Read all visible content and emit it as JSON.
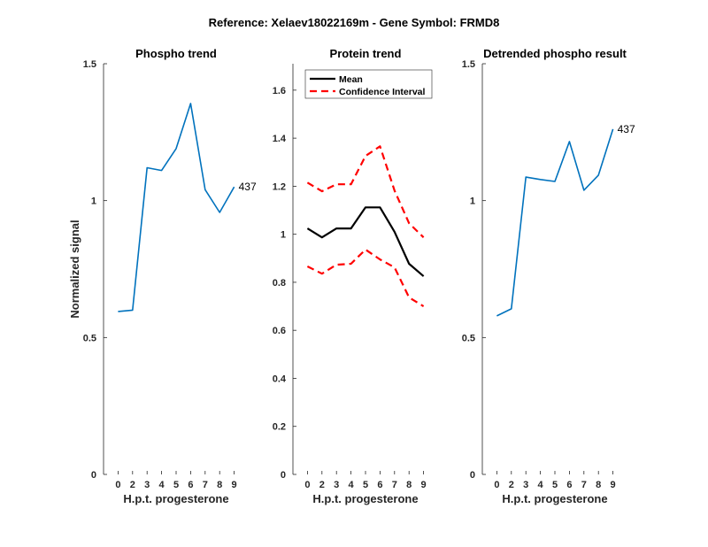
{
  "figure_title": "Reference:  Xelaev18022169m - Gene Symbol:  FRMD8",
  "chart_data": [
    {
      "type": "line",
      "title": "Phospho trend",
      "xlabel": "H.p.t. progesterone",
      "ylabel": "Normalized signal",
      "categories": [
        "0",
        "2",
        "3",
        "4",
        "5",
        "6",
        "7",
        "8",
        "9"
      ],
      "ylim": [
        0,
        1.5
      ],
      "yticks": [
        0,
        0.5,
        1,
        1.5
      ],
      "ytick_labels": [
        "0",
        "0.5",
        "1",
        "1.5"
      ],
      "series": [
        {
          "name": "437",
          "color": "#0072BD",
          "style": "solid",
          "values": [
            0.595,
            0.6,
            1.12,
            1.11,
            1.19,
            1.355,
            1.04,
            0.957,
            1.05
          ]
        }
      ],
      "end_label": "437"
    },
    {
      "type": "line",
      "title": "Protein trend",
      "xlabel": "H.p.t. progesterone",
      "ylabel": "",
      "categories": [
        "0",
        "2",
        "3",
        "4",
        "5",
        "6",
        "7",
        "8",
        "9"
      ],
      "ylim": [
        0,
        1.71
      ],
      "yticks": [
        0,
        0.2,
        0.4,
        0.6,
        0.8,
        1,
        1.2,
        1.4,
        1.6
      ],
      "ytick_labels": [
        "0",
        "0.2",
        "0.4",
        "0.6",
        "0.8",
        "1",
        "1.2",
        "1.4",
        "1.6"
      ],
      "legend": {
        "placement": "top-left",
        "entries": [
          "Mean",
          "Confidence Interval"
        ]
      },
      "series": [
        {
          "name": "Mean",
          "color": "#000000",
          "style": "solid",
          "values": [
            1.024,
            0.987,
            1.024,
            1.024,
            1.112,
            1.112,
            1.01,
            0.877,
            0.825
          ]
        },
        {
          "name": "Confidence Interval (upper)",
          "color": "#FF0000",
          "style": "dashed",
          "values": [
            1.215,
            1.179,
            1.208,
            1.208,
            1.326,
            1.366,
            1.182,
            1.046,
            0.987
          ]
        },
        {
          "name": "Confidence Interval (lower)",
          "color": "#FF0000",
          "style": "dashed",
          "values": [
            0.866,
            0.836,
            0.873,
            0.877,
            0.936,
            0.895,
            0.862,
            0.737,
            0.7
          ]
        }
      ]
    },
    {
      "type": "line",
      "title": "Detrended phospho result",
      "xlabel": "H.p.t. progesterone",
      "ylabel": "",
      "categories": [
        "0",
        "2",
        "3",
        "4",
        "5",
        "6",
        "7",
        "8",
        "9"
      ],
      "ylim": [
        0,
        1.5
      ],
      "yticks": [
        0,
        0.5,
        1,
        1.5
      ],
      "ytick_labels": [
        "0",
        "0.5",
        "1",
        "1.5"
      ],
      "series": [
        {
          "name": "437",
          "color": "#0072BD",
          "style": "solid",
          "values": [
            0.579,
            0.605,
            1.086,
            1.077,
            1.07,
            1.216,
            1.038,
            1.093,
            1.261
          ]
        }
      ],
      "end_label": "437"
    }
  ]
}
